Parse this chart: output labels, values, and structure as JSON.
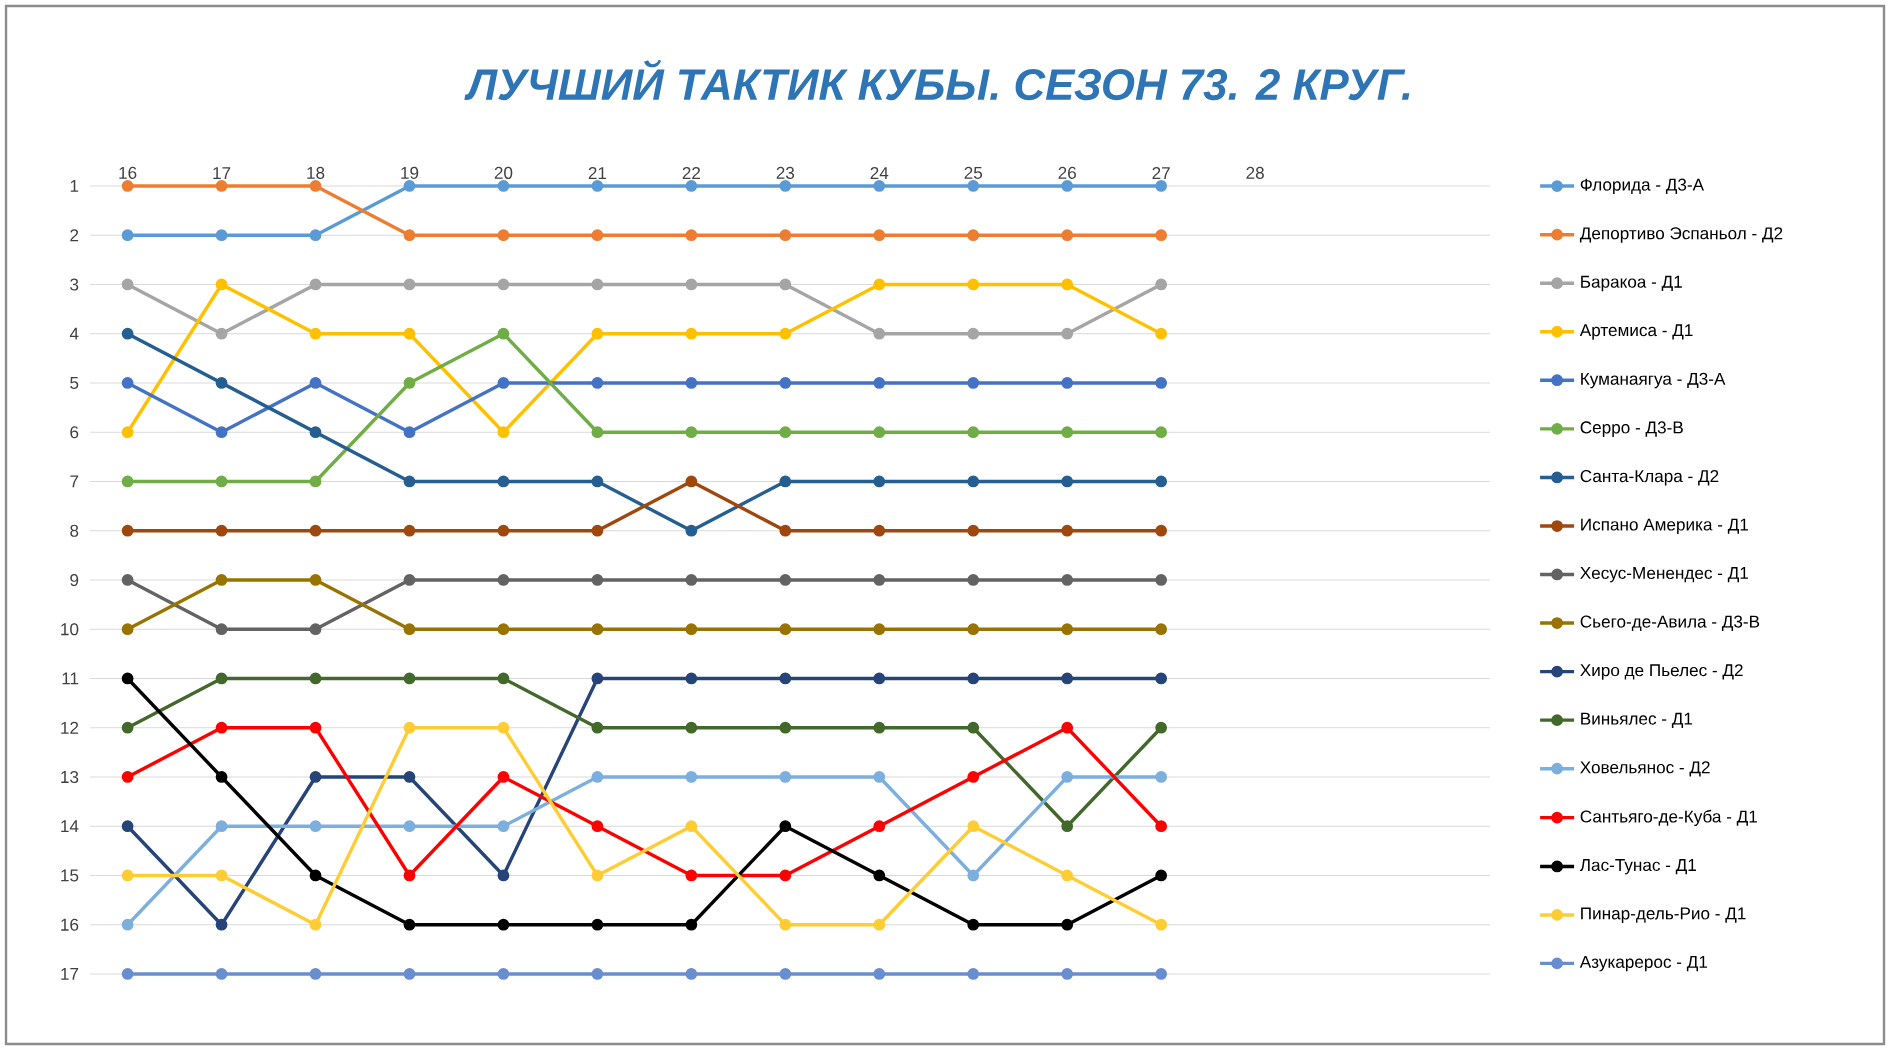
{
  "chart_data": {
    "type": "line",
    "title": "ЛУЧШИЙ ТАКТИК КУБЫ. СЕЗОН 73. 2 КРУГ.",
    "x": [
      16,
      17,
      18,
      19,
      20,
      21,
      22,
      23,
      24,
      25,
      26,
      27
    ],
    "xlim": [
      15.6,
      30.5
    ],
    "xticks": [
      16,
      17,
      18,
      19,
      20,
      21,
      22,
      23,
      24,
      25,
      26,
      27,
      28
    ],
    "ylim": [
      17,
      1
    ],
    "yticks": [
      1,
      2,
      3,
      4,
      5,
      6,
      7,
      8,
      9,
      10,
      11,
      12,
      13,
      14,
      15,
      16,
      17
    ],
    "grid": "y",
    "legend": "right",
    "marker": "circle",
    "line_style": "solid",
    "series": [
      {
        "name": "Флорида - Д3-А",
        "color": "#5b9bd5",
        "values": [
          2,
          2,
          2,
          1,
          1,
          1,
          1,
          1,
          1,
          1,
          1,
          1
        ]
      },
      {
        "name": "Депортиво Эспаньол - Д2",
        "color": "#ed7d31",
        "values": [
          1,
          1,
          1,
          2,
          2,
          2,
          2,
          2,
          2,
          2,
          2,
          2
        ]
      },
      {
        "name": "Баракоа - Д1",
        "color": "#a5a5a5",
        "values": [
          3,
          4,
          3,
          3,
          3,
          3,
          3,
          3,
          4,
          4,
          4,
          3
        ]
      },
      {
        "name": "Артемиса - Д1",
        "color": "#ffc000",
        "values": [
          6,
          3,
          4,
          4,
          6,
          4,
          4,
          4,
          3,
          3,
          3,
          4
        ]
      },
      {
        "name": "Куманаягуа - Д3-А",
        "color": "#4472c4",
        "values": [
          5,
          6,
          5,
          6,
          5,
          5,
          5,
          5,
          5,
          5,
          5,
          5
        ]
      },
      {
        "name": "Серро - Д3-В",
        "color": "#70ad47",
        "values": [
          7,
          7,
          7,
          5,
          4,
          6,
          6,
          6,
          6,
          6,
          6,
          6
        ]
      },
      {
        "name": "Санта-Клара - Д2",
        "color": "#255e91",
        "values": [
          4,
          5,
          6,
          7,
          7,
          7,
          8,
          7,
          7,
          7,
          7,
          7
        ]
      },
      {
        "name": "Испано Америка - Д1",
        "color": "#9e480e",
        "values": [
          8,
          8,
          8,
          8,
          8,
          8,
          7,
          8,
          8,
          8,
          8,
          8
        ]
      },
      {
        "name": "Хесус-Менендес - Д1",
        "color": "#636363",
        "values": [
          9,
          10,
          10,
          9,
          9,
          9,
          9,
          9,
          9,
          9,
          9,
          9
        ]
      },
      {
        "name": "Сьего-де-Авила - Д3-В",
        "color": "#997300",
        "values": [
          10,
          9,
          9,
          10,
          10,
          10,
          10,
          10,
          10,
          10,
          10,
          10
        ]
      },
      {
        "name": "Хиро де Пьелес - Д2",
        "color": "#264478",
        "values": [
          14,
          16,
          13,
          13,
          15,
          11,
          11,
          11,
          11,
          11,
          11,
          11
        ]
      },
      {
        "name": "Виньялес - Д1",
        "color": "#43682b",
        "values": [
          12,
          11,
          11,
          11,
          11,
          12,
          12,
          12,
          12,
          12,
          14,
          12
        ]
      },
      {
        "name": "Ховельянос - Д2",
        "color": "#7cafdd",
        "values": [
          16,
          14,
          14,
          14,
          14,
          13,
          13,
          13,
          13,
          15,
          13,
          13
        ]
      },
      {
        "name": "Сантьяго-де-Куба - Д1",
        "color": "#ff0000",
        "values": [
          13,
          12,
          12,
          15,
          13,
          14,
          15,
          15,
          14,
          13,
          12,
          14
        ]
      },
      {
        "name": "Лас-Тунас - Д1",
        "color": "#000000",
        "values": [
          11,
          13,
          15,
          16,
          16,
          16,
          16,
          14,
          15,
          16,
          16,
          15
        ]
      },
      {
        "name": "Пинар-дель-Рио - Д1",
        "color": "#ffcd33",
        "values": [
          15,
          15,
          16,
          12,
          12,
          15,
          14,
          16,
          16,
          14,
          15,
          16
        ]
      },
      {
        "name": "Азукарерос - Д1",
        "color": "#698ed0",
        "values": [
          17,
          17,
          17,
          17,
          17,
          17,
          17,
          17,
          17,
          17,
          17,
          17
        ]
      }
    ]
  }
}
